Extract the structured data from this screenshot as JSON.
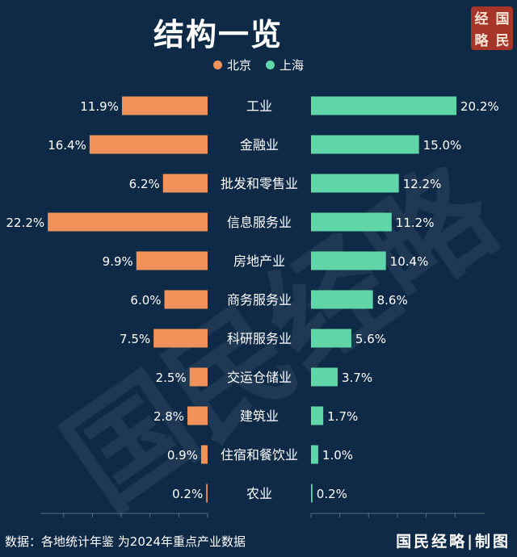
{
  "title": "结构一览",
  "logo": {
    "chars": [
      "经",
      "国",
      "略",
      "民"
    ]
  },
  "watermark": "国民经略",
  "footer": {
    "source": "数据：各地统计年鉴 为2024年重点产业数据",
    "brand": "国民经略|制图"
  },
  "colors": {
    "background": "#0f2a47",
    "beijing": "#f0925a",
    "shanghai": "#5fd6a8"
  },
  "chart_data": {
    "type": "bar",
    "orientation": "horizontal-diverging",
    "categories": [
      "工业",
      "金融业",
      "批发和零售业",
      "信息服务业",
      "房地产业",
      "商务服务业",
      "科研服务业",
      "交运仓储业",
      "建筑业",
      "住宿和餐饮业",
      "农业"
    ],
    "series": [
      {
        "name": "北京",
        "color": "#f0925a",
        "values": [
          11.9,
          16.4,
          6.2,
          22.2,
          9.9,
          6.0,
          7.5,
          2.5,
          2.8,
          0.9,
          0.2
        ],
        "labels": [
          "11.9%",
          "16.4%",
          "6.2%",
          "22.2%",
          "9.9%",
          "6.0%",
          "7.5%",
          "2.5%",
          "2.8%",
          "0.9%",
          "0.2%"
        ]
      },
      {
        "name": "上海",
        "color": "#5fd6a8",
        "values": [
          20.2,
          15.0,
          12.2,
          11.2,
          10.4,
          8.6,
          5.6,
          3.7,
          1.7,
          1.0,
          0.2
        ],
        "labels": [
          "20.2%",
          "15.0%",
          "12.2%",
          "11.2%",
          "10.4%",
          "8.6%",
          "5.6%",
          "3.7%",
          "1.7%",
          "1.0%",
          "0.2%"
        ]
      }
    ],
    "legend_position": "top-center",
    "grid": false
  }
}
